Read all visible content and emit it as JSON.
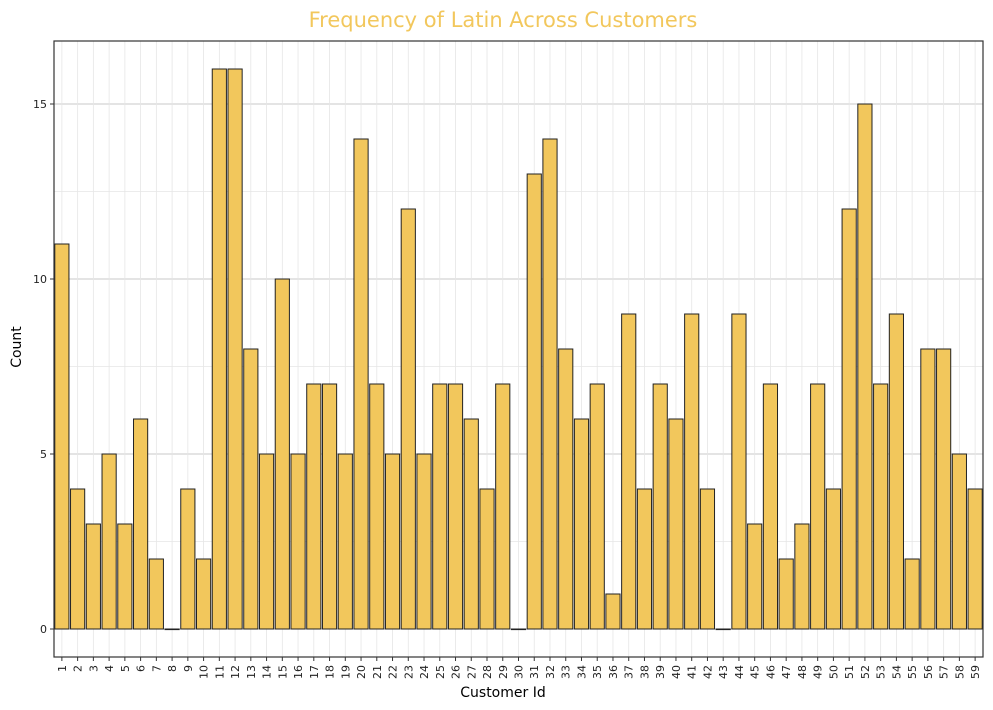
{
  "chart_data": {
    "type": "bar",
    "title": "Frequency of Latin Across Customers",
    "xlabel": "Customer Id",
    "ylabel": "Count",
    "categories": [
      "1",
      "2",
      "3",
      "4",
      "5",
      "6",
      "7",
      "8",
      "9",
      "10",
      "11",
      "12",
      "13",
      "14",
      "15",
      "16",
      "17",
      "18",
      "19",
      "20",
      "21",
      "22",
      "23",
      "24",
      "25",
      "26",
      "27",
      "28",
      "29",
      "30",
      "31",
      "32",
      "33",
      "34",
      "35",
      "36",
      "37",
      "38",
      "39",
      "40",
      "41",
      "42",
      "43",
      "44",
      "45",
      "46",
      "47",
      "48",
      "49",
      "50",
      "51",
      "52",
      "53",
      "54",
      "55",
      "56",
      "57",
      "58",
      "59"
    ],
    "values": [
      11,
      4,
      3,
      5,
      3,
      6,
      2,
      0,
      4,
      2,
      16,
      16,
      8,
      5,
      10,
      5,
      7,
      7,
      5,
      14,
      7,
      5,
      12,
      5,
      7,
      7,
      6,
      4,
      7,
      0,
      13,
      14,
      8,
      6,
      7,
      1,
      9,
      4,
      7,
      6,
      9,
      4,
      0,
      9,
      3,
      7,
      2,
      3,
      7,
      4,
      12,
      15,
      7,
      9,
      2,
      8,
      8,
      5,
      4
    ],
    "ylim": [
      -0.8,
      16.8
    ],
    "yticks": [
      0,
      5,
      10,
      15
    ],
    "grid": true,
    "bar_color": "#f2c75c",
    "title_color": "#f2c75c"
  }
}
